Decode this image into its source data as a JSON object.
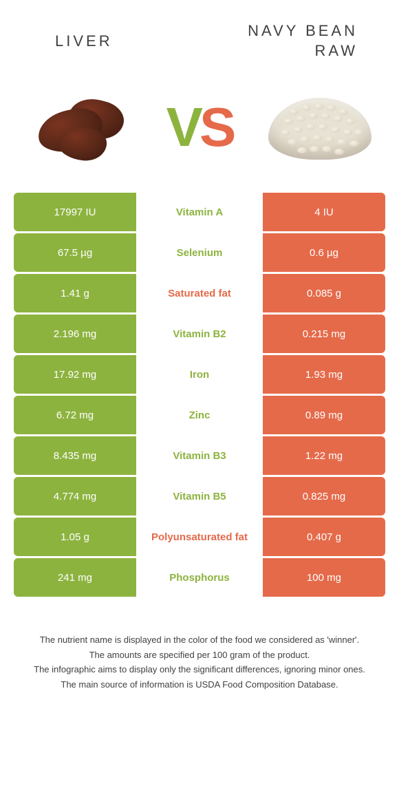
{
  "header": {
    "left_title": "LIVER",
    "right_title": "NAVY BEAN RAW",
    "vs_v": "V",
    "vs_s": "S"
  },
  "colors": {
    "left": "#8db33f",
    "right": "#e56a4a",
    "text_dark": "#404040"
  },
  "table": {
    "rows": [
      {
        "left": "17997 IU",
        "label": "Vitamin A",
        "right": "4 IU",
        "winner": "left"
      },
      {
        "left": "67.5 µg",
        "label": "Selenium",
        "right": "0.6 µg",
        "winner": "left"
      },
      {
        "left": "1.41 g",
        "label": "Saturated fat",
        "right": "0.085 g",
        "winner": "right"
      },
      {
        "left": "2.196 mg",
        "label": "Vitamin B2",
        "right": "0.215 mg",
        "winner": "left"
      },
      {
        "left": "17.92 mg",
        "label": "Iron",
        "right": "1.93 mg",
        "winner": "left"
      },
      {
        "left": "6.72 mg",
        "label": "Zinc",
        "right": "0.89 mg",
        "winner": "left"
      },
      {
        "left": "8.435 mg",
        "label": "Vitamin B3",
        "right": "1.22 mg",
        "winner": "left"
      },
      {
        "left": "4.774 mg",
        "label": "Vitamin B5",
        "right": "0.825 mg",
        "winner": "left"
      },
      {
        "left": "1.05 g",
        "label": "Polyunsaturated fat",
        "right": "0.407 g",
        "winner": "right"
      },
      {
        "left": "241 mg",
        "label": "Phosphorus",
        "right": "100 mg",
        "winner": "left"
      }
    ]
  },
  "footer": {
    "line1": "The nutrient name is displayed in the color of the food we considered as 'winner'.",
    "line2": "The amounts are specified per 100 gram of the product.",
    "line3": "The infographic aims to display only the significant differences, ignoring minor ones.",
    "line4": "The main source of information is USDA Food Composition Database."
  }
}
